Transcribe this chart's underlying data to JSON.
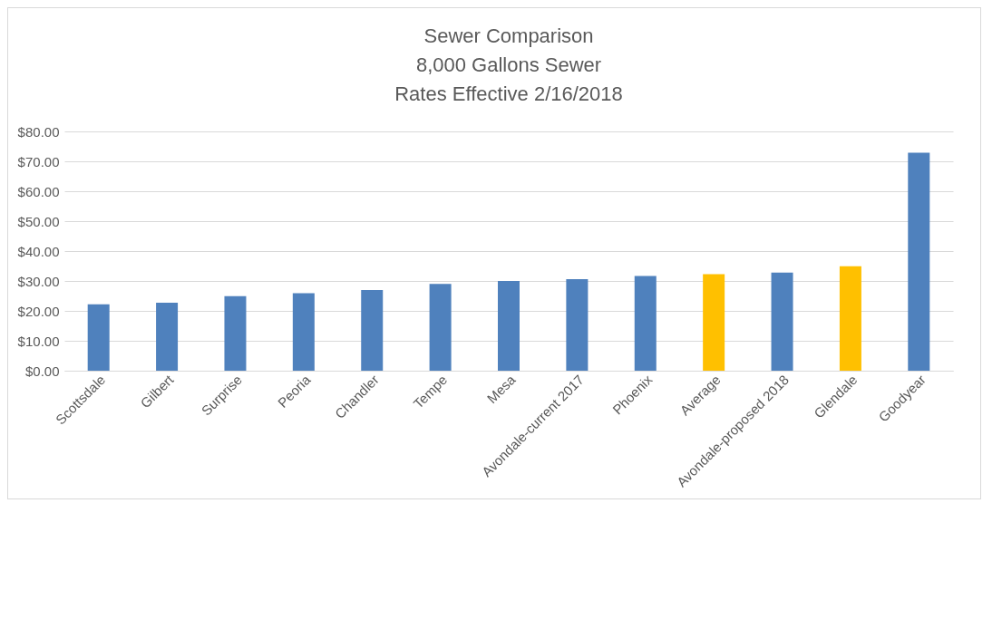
{
  "chart_data": {
    "type": "bar",
    "title": [
      "Sewer Comparison",
      "8,000 Gallons Sewer",
      "Rates Effective 2/16/2018"
    ],
    "categories": [
      "Scottsdale",
      "Gilbert",
      "Surprise",
      "Peoria",
      "Chandler",
      "Tempe",
      "Mesa",
      "Avondale-current 2017",
      "Phoenix",
      "Average",
      "Avondale-proposed 2018",
      "Glendale",
      "Goodyear"
    ],
    "values": [
      22.2,
      22.7,
      24.9,
      25.9,
      27.0,
      29.0,
      30.0,
      30.6,
      31.7,
      32.3,
      32.8,
      34.9,
      72.9
    ],
    "colors": [
      "#4f81bd",
      "#4f81bd",
      "#4f81bd",
      "#4f81bd",
      "#4f81bd",
      "#4f81bd",
      "#4f81bd",
      "#4f81bd",
      "#4f81bd",
      "#ffc000",
      "#4f81bd",
      "#ffc000",
      "#4f81bd"
    ],
    "ylim": [
      0,
      80
    ],
    "yticks": [
      {
        "value": 0,
        "label": "$0.00"
      },
      {
        "value": 10,
        "label": "$10.00"
      },
      {
        "value": 20,
        "label": "$20.00"
      },
      {
        "value": 30,
        "label": "$30.00"
      },
      {
        "value": 40,
        "label": "$40.00"
      },
      {
        "value": 50,
        "label": "$50.00"
      },
      {
        "value": 60,
        "label": "$60.00"
      },
      {
        "value": 70,
        "label": "$70.00"
      },
      {
        "value": 80,
        "label": "$80.00"
      }
    ],
    "grid": "y"
  }
}
